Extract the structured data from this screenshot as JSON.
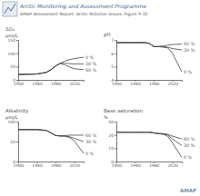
{
  "header": {
    "organization": "Arctic Monitoring and Assessment Programme",
    "caption": "AMAP Assessment Report: Arctic Pollution Issues, Figure 9-32"
  },
  "footer": "AMAP",
  "chart_data": [
    {
      "type": "line",
      "title": "SO₄",
      "ylabel": "µeq/L",
      "grid": false,
      "x": [
        1900,
        1940,
        1960,
        1970,
        1980,
        1990,
        2000,
        2010,
        2020,
        2040
      ],
      "xlim": [
        1900,
        2040
      ],
      "xticks": [
        1900,
        1940,
        1980,
        2020
      ],
      "ylim": [
        0,
        150
      ],
      "yticks": [
        0,
        50,
        100,
        150
      ],
      "series": [
        {
          "name": "0 %",
          "color": "#444444",
          "values": [
            20,
            22,
            28,
            38,
            52,
            62,
            70,
            76,
            80,
            85
          ]
        },
        {
          "name": "30 %",
          "color": "#444444",
          "values": [
            20,
            22,
            28,
            38,
            52,
            62,
            62,
            61,
            60,
            60
          ]
        },
        {
          "name": "60 %",
          "color": "#444444",
          "values": [
            20,
            22,
            28,
            38,
            52,
            62,
            56,
            48,
            42,
            38
          ]
        }
      ]
    },
    {
      "type": "line",
      "title": "pH",
      "grid": false,
      "x": [
        1900,
        1940,
        1960,
        1970,
        1980,
        1990,
        2000,
        2010,
        2020,
        2040
      ],
      "xlim": [
        1900,
        2040
      ],
      "xticks": [
        1900,
        1940,
        1980,
        2020
      ],
      "ylim": [
        4,
        7
      ],
      "yticks": [
        4,
        5,
        6,
        7
      ],
      "series": [
        {
          "name": "0 %",
          "color": "#444444",
          "values": [
            6.8,
            6.8,
            6.8,
            6.75,
            6.5,
            6.5,
            6.45,
            6.4,
            6.0,
            4.6
          ]
        },
        {
          "name": "30 %",
          "color": "#444444",
          "values": [
            6.8,
            6.8,
            6.8,
            6.75,
            6.5,
            6.5,
            6.5,
            6.45,
            6.35,
            6.25
          ]
        },
        {
          "name": "60 %",
          "color": "#444444",
          "values": [
            6.8,
            6.8,
            6.8,
            6.75,
            6.5,
            6.5,
            6.55,
            6.6,
            6.65,
            6.7
          ]
        }
      ]
    },
    {
      "type": "line",
      "title": "Alkalinity",
      "ylabel": "µeq/L",
      "grid": false,
      "x": [
        1900,
        1940,
        1960,
        1970,
        1980,
        1990,
        2000,
        2010,
        2020,
        2040
      ],
      "xlim": [
        1900,
        2040
      ],
      "xticks": [
        1900,
        1940,
        1980,
        2020
      ],
      "ylim": [
        0,
        100
      ],
      "yticks": [
        0,
        50,
        100
      ],
      "series": [
        {
          "name": "0 %",
          "color": "#444444",
          "values": [
            80,
            80,
            78,
            72,
            65,
            64,
            63,
            60,
            52,
            20
          ]
        },
        {
          "name": "30 %",
          "color": "#444444",
          "values": [
            80,
            80,
            78,
            72,
            65,
            64,
            64,
            62,
            58,
            50
          ]
        },
        {
          "name": "60 %",
          "color": "#444444",
          "values": [
            80,
            80,
            78,
            72,
            65,
            64,
            65,
            66,
            66,
            66
          ]
        }
      ]
    },
    {
      "type": "line",
      "title": "Base saturation",
      "ylabel": "%",
      "grid": false,
      "x": [
        1900,
        1940,
        1960,
        1970,
        1980,
        1990,
        2000,
        2010,
        2020,
        2040
      ],
      "xlim": [
        1900,
        2040
      ],
      "xticks": [
        1900,
        1940,
        1980,
        2020
      ],
      "ylim": [
        0,
        30
      ],
      "yticks": [
        0,
        10,
        20,
        30
      ],
      "series": [
        {
          "name": "0 %",
          "color": "#444444",
          "values": [
            22,
            22,
            22,
            22,
            21.5,
            21,
            20.5,
            19,
            14,
            3
          ]
        },
        {
          "name": "30 %",
          "color": "#444444",
          "values": [
            22,
            22,
            22,
            22,
            21.5,
            21,
            20.5,
            20,
            17,
            12
          ]
        },
        {
          "name": "60 %",
          "color": "#444444",
          "values": [
            22,
            22,
            22,
            22,
            21.5,
            21,
            21,
            20.5,
            19,
            17
          ]
        }
      ]
    }
  ]
}
